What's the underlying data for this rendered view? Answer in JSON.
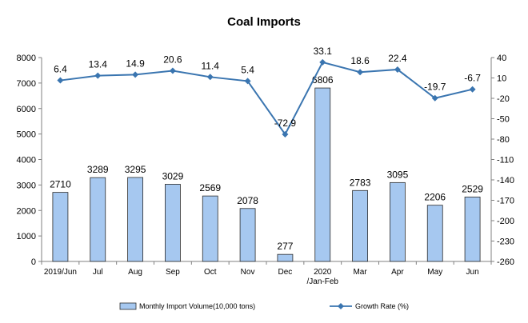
{
  "chart_data": {
    "type": "bar",
    "title": "Coal Imports",
    "categories": [
      "2019/Jun",
      "Jul",
      "Aug",
      "Sep",
      "Oct",
      "Nov",
      "Dec",
      "2020\n/Jan-Feb",
      "Mar",
      "Apr",
      "May",
      "Jun"
    ],
    "series": [
      {
        "name": "Monthly Import Volume(10,000 tons)",
        "type": "bar",
        "axis": "left",
        "color": "#a6c8f0",
        "values": [
          2710,
          3289,
          3295,
          3029,
          2569,
          2078,
          277,
          6806,
          2783,
          3095,
          2206,
          2529
        ]
      },
      {
        "name": "Growth Rate (%)",
        "type": "line",
        "axis": "right",
        "color": "#3a75b0",
        "values": [
          6.4,
          13.4,
          14.9,
          20.6,
          11.4,
          5.4,
          -72.9,
          33.1,
          18.6,
          22.4,
          -19.7,
          -6.7
        ]
      }
    ],
    "y_left": {
      "min": 0,
      "max": 8000,
      "step": 1000
    },
    "y_right": {
      "min": -260,
      "max": 40,
      "step": 30
    },
    "grid": false,
    "legend_position": "bottom"
  }
}
